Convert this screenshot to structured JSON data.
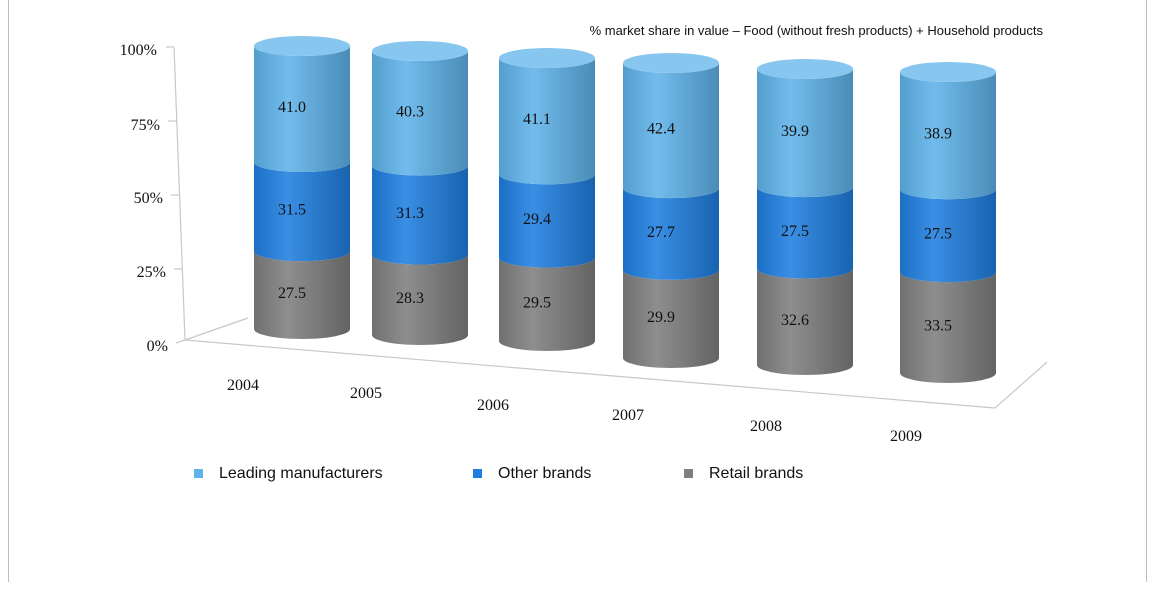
{
  "chart_data": {
    "type": "bar",
    "stacked": true,
    "style": "3d-cylinder",
    "title": "% market share in value – Food (without fresh products) + Household products",
    "categories": [
      "2004",
      "2005",
      "2006",
      "2007",
      "2008",
      "2009"
    ],
    "series": [
      {
        "name": "Retail brands",
        "values": [
          27.5,
          28.3,
          29.5,
          29.9,
          32.6,
          33.5
        ],
        "color": "#7f7f7f"
      },
      {
        "name": "Other brands",
        "values": [
          31.5,
          31.3,
          29.4,
          27.7,
          27.5,
          27.5
        ],
        "color": "#1f7fe0"
      },
      {
        "name": "Leading manufacturers",
        "values": [
          41.0,
          40.3,
          41.1,
          42.4,
          39.9,
          38.9
        ],
        "color": "#5fb3ea"
      }
    ],
    "legend_order": [
      "Leading manufacturers",
      "Other brands",
      "Retail brands"
    ],
    "ylim": [
      0,
      100
    ],
    "yticks": [
      "0%",
      "25%",
      "50%",
      "75%",
      "100%"
    ],
    "legend_position": "bottom",
    "grid": false
  }
}
